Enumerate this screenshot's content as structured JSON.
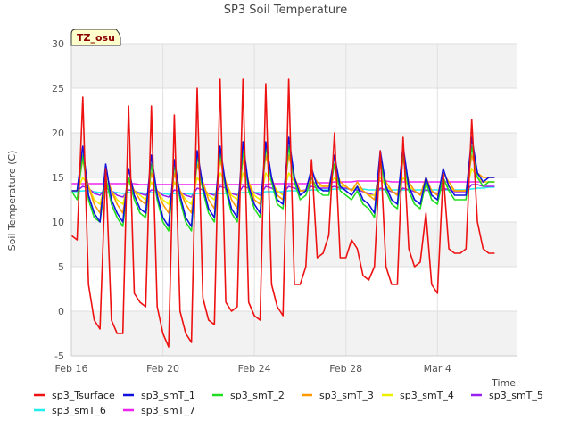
{
  "chart_data": {
    "type": "line",
    "title": "SP3 Soil Temperature",
    "xlabel": "Time",
    "ylabel": "Soil Temperature (C)",
    "ylim": [
      -5,
      30
    ],
    "y_ticks": [
      -5,
      0,
      5,
      10,
      15,
      20,
      25,
      30
    ],
    "xlim": [
      0,
      19.5
    ],
    "x_ticks": [
      {
        "label": "Feb 16",
        "day": 0
      },
      {
        "label": "Feb 20",
        "day": 4
      },
      {
        "label": "Feb 24",
        "day": 8
      },
      {
        "label": "Feb 28",
        "day": 12
      },
      {
        "label": "Mar 4",
        "day": 16
      }
    ],
    "annotation": "TZ_osu",
    "legend_position": "bottom",
    "series_style": [
      {
        "name": "sp3_Tsurface",
        "color": "#ee1111"
      },
      {
        "name": "sp3_smT_1",
        "color": "#1111dd"
      },
      {
        "name": "sp3_smT_2",
        "color": "#22dd22"
      },
      {
        "name": "sp3_smT_3",
        "color": "#ff9900"
      },
      {
        "name": "sp3_smT_4",
        "color": "#eeee00"
      },
      {
        "name": "sp3_smT_5",
        "color": "#9922ee"
      },
      {
        "name": "sp3_smT_6",
        "color": "#22eeee"
      },
      {
        "name": "sp3_smT_7",
        "color": "#ee22ee"
      }
    ],
    "x_days": [
      0.0,
      0.25,
      0.5,
      0.75,
      1.0,
      1.25,
      1.5,
      1.75,
      2.0,
      2.25,
      2.5,
      2.75,
      3.0,
      3.25,
      3.5,
      3.75,
      4.0,
      4.25,
      4.5,
      4.75,
      5.0,
      5.25,
      5.5,
      5.75,
      6.0,
      6.25,
      6.5,
      6.75,
      7.0,
      7.25,
      7.5,
      7.75,
      8.0,
      8.25,
      8.5,
      8.75,
      9.0,
      9.25,
      9.5,
      9.75,
      10.0,
      10.25,
      10.5,
      10.75,
      11.0,
      11.25,
      11.5,
      11.75,
      12.0,
      12.25,
      12.5,
      12.75,
      13.0,
      13.25,
      13.5,
      13.75,
      14.0,
      14.25,
      14.5,
      14.75,
      15.0,
      15.25,
      15.5,
      15.75,
      16.0,
      16.25,
      16.5,
      16.75,
      17.0,
      17.25,
      17.5,
      17.75,
      18.0,
      18.25,
      18.5
    ],
    "series": [
      {
        "name": "sp3_Tsurface",
        "values": [
          8.5,
          8.0,
          24.0,
          3.0,
          -1.0,
          -2.0,
          16.0,
          -1.0,
          -2.5,
          -2.5,
          23.0,
          2.0,
          1.0,
          0.5,
          23.0,
          0.5,
          -2.5,
          -4.0,
          22.0,
          0.0,
          -2.5,
          -3.5,
          25.0,
          1.5,
          -1.0,
          -1.5,
          26.0,
          1.0,
          0.0,
          0.5,
          26.0,
          1.0,
          -0.5,
          -1.0,
          25.5,
          3.0,
          0.5,
          -0.5,
          26.0,
          3.0,
          3.0,
          5.0,
          17.0,
          6.0,
          6.5,
          8.5,
          20.0,
          6.0,
          6.0,
          8.0,
          7.0,
          4.0,
          3.5,
          5.0,
          18.0,
          5.0,
          3.0,
          3.0,
          19.5,
          7.0,
          5.0,
          5.5,
          11.0,
          3.0,
          2.0,
          15.5,
          7.0,
          6.5,
          6.5,
          7.0,
          21.5,
          10.0,
          7.0,
          6.5,
          6.5
        ]
      },
      {
        "name": "sp3_smT_1",
        "values": [
          13.5,
          13.5,
          18.5,
          13.0,
          11.0,
          10.0,
          16.5,
          12.5,
          11.0,
          10.0,
          16.0,
          13.0,
          11.5,
          11.0,
          17.5,
          13.0,
          10.5,
          9.5,
          17.0,
          13.0,
          10.5,
          9.5,
          18.0,
          14.0,
          11.5,
          10.5,
          18.5,
          14.0,
          11.5,
          10.5,
          19.0,
          14.0,
          12.0,
          11.0,
          19.0,
          15.0,
          12.5,
          12.0,
          19.5,
          15.0,
          13.0,
          13.5,
          16.0,
          14.0,
          13.5,
          13.5,
          17.5,
          14.0,
          13.5,
          13.0,
          14.0,
          12.5,
          12.0,
          11.0,
          18.0,
          14.0,
          12.5,
          12.0,
          18.5,
          14.0,
          12.5,
          12.0,
          15.0,
          13.0,
          12.5,
          16.0,
          14.0,
          13.0,
          13.0,
          13.0,
          19.5,
          15.5,
          14.5,
          15.0,
          15.0
        ]
      },
      {
        "name": "sp3_smT_2",
        "values": [
          13.5,
          12.5,
          17.5,
          12.5,
          10.5,
          10.0,
          15.0,
          12.0,
          10.5,
          9.5,
          15.0,
          12.5,
          11.0,
          10.5,
          16.5,
          12.5,
          10.0,
          9.0,
          16.5,
          12.5,
          10.0,
          9.0,
          17.5,
          13.5,
          11.0,
          10.0,
          18.0,
          13.5,
          11.0,
          10.0,
          18.0,
          13.5,
          11.5,
          10.5,
          18.5,
          14.5,
          12.0,
          11.5,
          18.5,
          14.5,
          12.5,
          13.0,
          15.0,
          13.5,
          13.0,
          13.0,
          16.5,
          13.5,
          13.0,
          12.5,
          13.5,
          12.0,
          11.5,
          10.5,
          17.0,
          13.5,
          12.0,
          11.5,
          17.5,
          13.5,
          12.0,
          11.5,
          14.5,
          12.5,
          12.0,
          15.0,
          13.5,
          12.5,
          12.5,
          12.5,
          18.5,
          15.0,
          14.0,
          14.5,
          14.5
        ]
      },
      {
        "name": "sp3_smT_3",
        "values": [
          13.5,
          13.5,
          17.0,
          14.0,
          12.0,
          11.0,
          15.5,
          13.5,
          12.0,
          11.0,
          15.0,
          13.5,
          12.5,
          12.0,
          15.5,
          13.5,
          12.0,
          11.0,
          15.5,
          13.5,
          12.0,
          11.0,
          16.5,
          14.5,
          12.5,
          11.5,
          17.0,
          14.5,
          12.5,
          11.5,
          17.0,
          14.5,
          12.5,
          12.0,
          17.5,
          15.0,
          13.0,
          12.5,
          17.5,
          15.0,
          13.5,
          13.5,
          15.5,
          14.5,
          14.0,
          14.0,
          16.5,
          14.5,
          14.0,
          13.5,
          14.5,
          13.5,
          13.0,
          12.5,
          16.5,
          14.5,
          13.5,
          13.0,
          17.0,
          14.5,
          13.5,
          13.0,
          15.0,
          13.5,
          13.0,
          15.5,
          14.5,
          13.5,
          13.5,
          13.5,
          17.5,
          15.5,
          15.0,
          15.0,
          15.0
        ]
      },
      {
        "name": "sp3_smT_4",
        "values": [
          13.5,
          13.5,
          15.0,
          14.0,
          12.5,
          12.0,
          14.5,
          13.5,
          12.5,
          12.0,
          14.5,
          13.5,
          13.0,
          12.5,
          14.5,
          13.5,
          12.5,
          12.0,
          14.5,
          13.5,
          12.5,
          12.0,
          15.0,
          14.0,
          13.0,
          12.5,
          15.5,
          14.5,
          13.0,
          12.5,
          15.5,
          14.5,
          13.0,
          12.5,
          15.5,
          14.5,
          13.5,
          13.0,
          15.5,
          14.5,
          13.5,
          13.5,
          14.5,
          14.0,
          14.0,
          14.0,
          15.0,
          14.0,
          14.0,
          13.5,
          14.0,
          13.5,
          13.0,
          13.0,
          15.0,
          14.0,
          13.5,
          13.0,
          15.0,
          14.0,
          13.5,
          13.0,
          14.0,
          13.5,
          13.0,
          14.5,
          14.0,
          13.5,
          13.5,
          13.5,
          16.0,
          15.0,
          14.5,
          14.5,
          14.5
        ]
      },
      {
        "name": "sp3_smT_5",
        "values": [
          13.5,
          13.5,
          14.0,
          13.8,
          13.2,
          13.0,
          13.8,
          13.5,
          13.0,
          12.8,
          13.6,
          13.5,
          13.2,
          13.0,
          13.6,
          13.5,
          13.0,
          12.8,
          13.6,
          13.4,
          13.0,
          12.8,
          13.8,
          13.6,
          13.2,
          13.0,
          14.0,
          13.8,
          13.2,
          13.0,
          14.0,
          13.8,
          13.3,
          13.0,
          14.0,
          13.8,
          13.4,
          13.2,
          14.0,
          13.8,
          13.5,
          13.6,
          14.0,
          13.8,
          13.8,
          13.8,
          14.0,
          13.8,
          13.8,
          13.6,
          13.6,
          13.4,
          13.2,
          13.0,
          13.8,
          13.6,
          13.4,
          13.2,
          13.8,
          13.6,
          13.4,
          13.2,
          13.6,
          13.4,
          13.2,
          13.8,
          13.6,
          13.4,
          13.4,
          13.4,
          14.2,
          14.2,
          14.0,
          14.0,
          14.0
        ]
      },
      {
        "name": "sp3_smT_6",
        "values": [
          13.4,
          13.4,
          13.5,
          13.5,
          13.4,
          13.3,
          13.4,
          13.4,
          13.3,
          13.2,
          13.3,
          13.3,
          13.3,
          13.2,
          13.3,
          13.3,
          13.2,
          13.1,
          13.2,
          13.2,
          13.2,
          13.1,
          13.2,
          13.2,
          13.2,
          13.1,
          13.2,
          13.2,
          13.2,
          13.2,
          13.3,
          13.3,
          13.3,
          13.3,
          13.4,
          13.4,
          13.4,
          13.4,
          13.5,
          13.5,
          13.5,
          13.5,
          13.6,
          13.6,
          13.6,
          13.6,
          13.7,
          13.7,
          13.7,
          13.7,
          13.7,
          13.7,
          13.6,
          13.6,
          13.6,
          13.6,
          13.6,
          13.6,
          13.6,
          13.6,
          13.6,
          13.6,
          13.6,
          13.6,
          13.6,
          13.6,
          13.6,
          13.6,
          13.6,
          13.6,
          13.7,
          13.8,
          13.8,
          13.9,
          13.9
        ]
      },
      {
        "name": "sp3_smT_7",
        "values": [
          14.3,
          14.3,
          14.3,
          14.3,
          14.3,
          14.3,
          14.3,
          14.3,
          14.3,
          14.3,
          14.3,
          14.3,
          14.2,
          14.2,
          14.2,
          14.2,
          14.2,
          14.2,
          14.2,
          14.2,
          14.2,
          14.2,
          14.2,
          14.2,
          14.2,
          14.2,
          14.2,
          14.2,
          14.2,
          14.2,
          14.2,
          14.2,
          14.2,
          14.2,
          14.2,
          14.3,
          14.3,
          14.3,
          14.3,
          14.3,
          14.3,
          14.3,
          14.4,
          14.4,
          14.4,
          14.4,
          14.5,
          14.5,
          14.5,
          14.5,
          14.6,
          14.6,
          14.6,
          14.6,
          14.6,
          14.6,
          14.5,
          14.5,
          14.5,
          14.5,
          14.5,
          14.5,
          14.5,
          14.5,
          14.5,
          14.5,
          14.5,
          14.5,
          14.5,
          14.5,
          14.5,
          14.5,
          14.5,
          14.5,
          14.5
        ]
      }
    ]
  }
}
